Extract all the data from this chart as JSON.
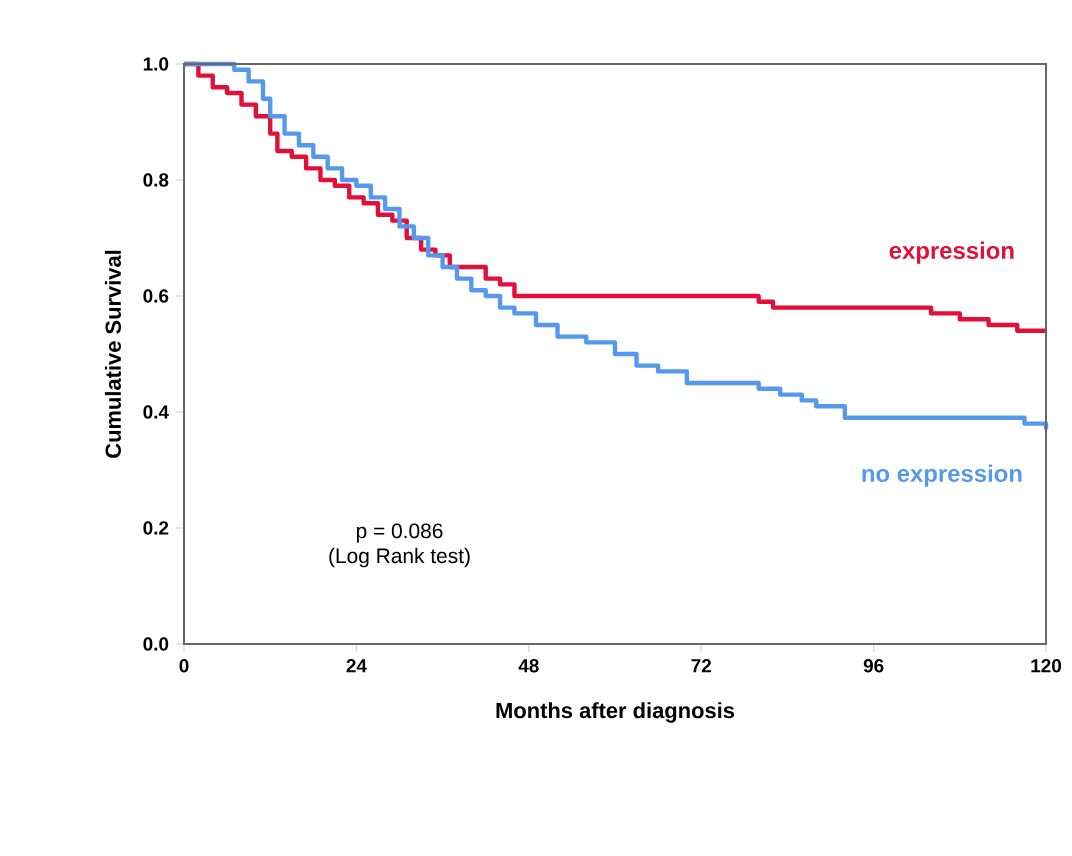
{
  "chart_data": {
    "type": "step",
    "xlabel": "Months after diagnosis",
    "ylabel": "Cumulative Survival",
    "xlim": [
      0,
      120
    ],
    "xticks": [
      0,
      24,
      48,
      72,
      96,
      120
    ],
    "ylim": [
      0,
      1
    ],
    "yticks": [
      {
        "value": 0,
        "label": "0.0"
      },
      {
        "value": 0.2,
        "label": "0.2"
      },
      {
        "value": 0.4,
        "label": "0.4"
      },
      {
        "value": 0.6,
        "label": "0.6"
      },
      {
        "value": 0.8,
        "label": "0.8"
      },
      {
        "value": 1,
        "label": "1.0"
      }
    ],
    "series": [
      {
        "name": "expression",
        "color": "#e0103a",
        "x": [
          0,
          2,
          4,
          6,
          8,
          10,
          12,
          13,
          15,
          17,
          19,
          21,
          23,
          25,
          27,
          29,
          31,
          33,
          35,
          37,
          42,
          44,
          46,
          80,
          82,
          104,
          108,
          112,
          116,
          120
        ],
        "values": [
          1.0,
          0.98,
          0.96,
          0.95,
          0.93,
          0.91,
          0.88,
          0.85,
          0.84,
          0.82,
          0.8,
          0.79,
          0.77,
          0.76,
          0.74,
          0.73,
          0.7,
          0.68,
          0.67,
          0.65,
          0.63,
          0.62,
          0.6,
          0.59,
          0.58,
          0.57,
          0.56,
          0.55,
          0.54,
          0.54
        ]
      },
      {
        "name": "no expression",
        "color": "#5599ee",
        "x": [
          0,
          5,
          7,
          9,
          11,
          12,
          14,
          16,
          18,
          20,
          22,
          24,
          26,
          28,
          30,
          32,
          34,
          36,
          38,
          40,
          42,
          44,
          46,
          49,
          52,
          56,
          60,
          63,
          66,
          70,
          80,
          83,
          86,
          88,
          92,
          114,
          117,
          120
        ],
        "values": [
          1.0,
          1.0,
          0.99,
          0.97,
          0.94,
          0.91,
          0.88,
          0.86,
          0.84,
          0.82,
          0.8,
          0.79,
          0.77,
          0.75,
          0.72,
          0.7,
          0.67,
          0.65,
          0.63,
          0.61,
          0.6,
          0.58,
          0.57,
          0.55,
          0.53,
          0.52,
          0.5,
          0.48,
          0.47,
          0.45,
          0.44,
          0.43,
          0.42,
          0.41,
          0.39,
          0.39,
          0.38,
          0.37
        ]
      }
    ],
    "annotations": [
      "p = 0.086",
      "(Log Rank test)"
    ]
  }
}
